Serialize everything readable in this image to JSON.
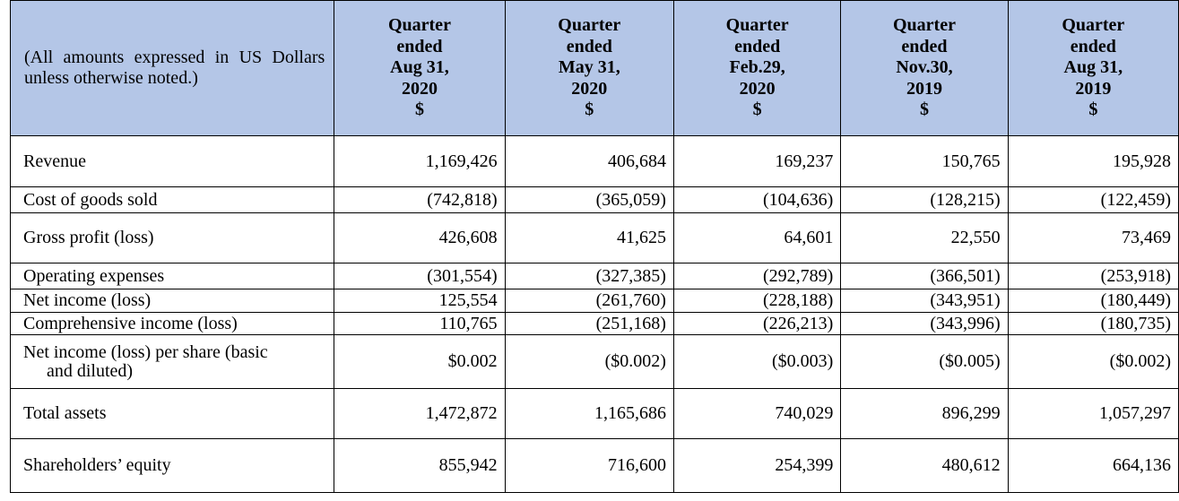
{
  "header": {
    "note": "(All amounts expressed in US Dollars unless otherwise noted.)",
    "columns": [
      [
        "Quarter",
        "ended",
        "Aug 31,",
        "2020",
        "$"
      ],
      [
        "Quarter",
        "ended",
        "May 31,",
        "2020",
        "$"
      ],
      [
        "Quarter",
        "ended",
        "Feb.29,",
        "2020",
        "$"
      ],
      [
        "Quarter",
        "ended",
        "Nov.30,",
        "2019",
        "$"
      ],
      [
        "Quarter",
        "ended",
        "Aug 31,",
        "2019",
        "$"
      ]
    ]
  },
  "rows": [
    {
      "label": "Revenue",
      "values": [
        "1,169,426",
        "406,684",
        "169,237",
        "150,765",
        "195,928"
      ]
    },
    {
      "label": "Cost of goods sold",
      "values": [
        "(742,818)",
        "(365,059)",
        "(104,636)",
        "(128,215)",
        "(122,459)"
      ]
    },
    {
      "label": "Gross profit (loss)",
      "values": [
        "426,608",
        "41,625",
        "64,601",
        "22,550",
        "73,469"
      ]
    },
    {
      "label": "Operating expenses",
      "values": [
        "(301,554)",
        "(327,385)",
        "(292,789)",
        "(366,501)",
        "(253,918)"
      ]
    },
    {
      "label": "Net income (loss)",
      "values": [
        "125,554",
        "(261,760)",
        "(228,188)",
        "(343,951)",
        "(180,449)"
      ]
    },
    {
      "label": "Comprehensive income (loss)",
      "values": [
        "110,765",
        "(251,168)",
        "(226,213)",
        "(343,996)",
        "(180,735)"
      ]
    },
    {
      "label_lines": [
        "Net income (loss) per share (basic",
        "and diluted)"
      ],
      "values": [
        "$0.002",
        "($0.002)",
        "($0.003)",
        "($0.005)",
        "($0.002)"
      ]
    },
    {
      "label": "Total assets",
      "values": [
        "1,472,872",
        "1,165,686",
        "740,029",
        "896,299",
        "1,057,297"
      ]
    },
    {
      "label": "Shareholders’ equity",
      "values": [
        "855,942",
        "716,600",
        "254,399",
        "480,612",
        "664,136"
      ]
    }
  ]
}
